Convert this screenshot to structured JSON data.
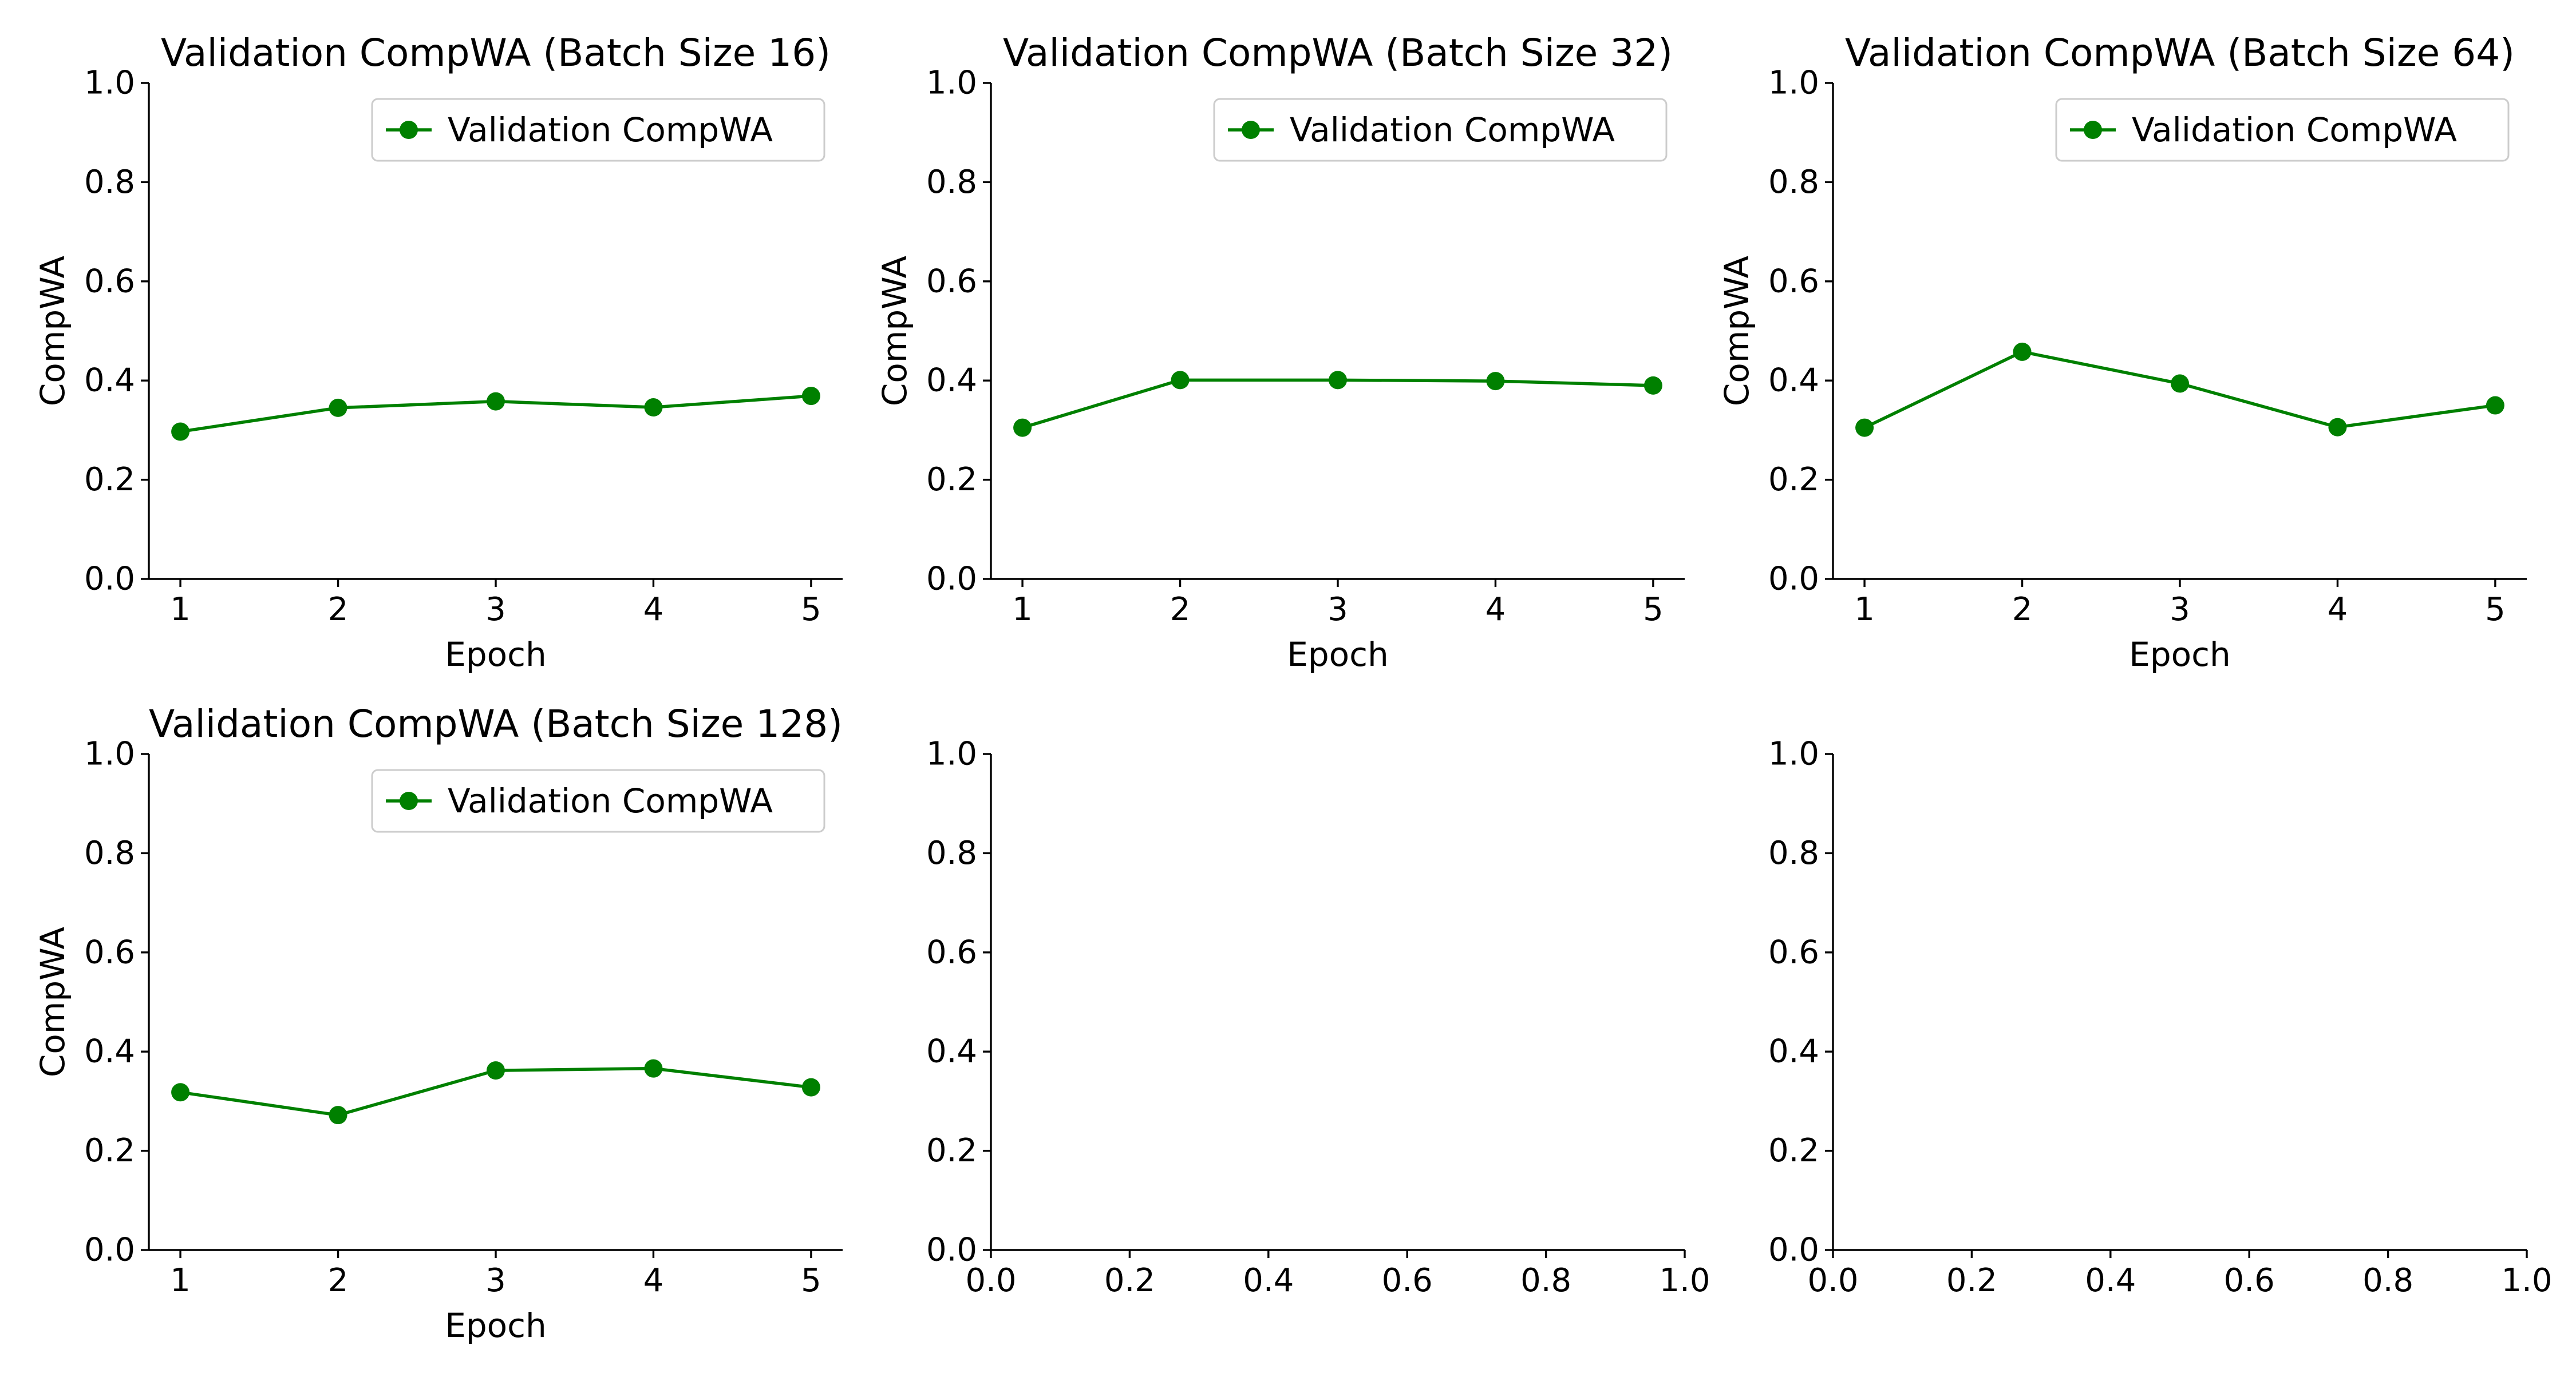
{
  "chart_data": [
    {
      "type": "line",
      "title": "Validation CompWA (Batch Size 16)",
      "xlabel": "Epoch",
      "ylabel": "CompWA",
      "x": [
        1,
        2,
        3,
        4,
        5
      ],
      "xticks": [
        "1",
        "2",
        "3",
        "4",
        "5"
      ],
      "yticks": [
        "0.0",
        "0.2",
        "0.4",
        "0.6",
        "0.8",
        "1.0"
      ],
      "ylim": [
        0,
        1
      ],
      "legend": "upper right",
      "series": [
        {
          "name": "Validation CompWA",
          "color": "#008000",
          "values": [
            0.297,
            0.345,
            0.358,
            0.346,
            0.369
          ]
        }
      ]
    },
    {
      "type": "line",
      "title": "Validation CompWA (Batch Size 32)",
      "xlabel": "Epoch",
      "ylabel": "CompWA",
      "x": [
        1,
        2,
        3,
        4,
        5
      ],
      "xticks": [
        "1",
        "2",
        "3",
        "4",
        "5"
      ],
      "yticks": [
        "0.0",
        "0.2",
        "0.4",
        "0.6",
        "0.8",
        "1.0"
      ],
      "ylim": [
        0,
        1
      ],
      "legend": "upper right",
      "series": [
        {
          "name": "Validation CompWA",
          "color": "#008000",
          "values": [
            0.305,
            0.401,
            0.401,
            0.399,
            0.39
          ]
        }
      ]
    },
    {
      "type": "line",
      "title": "Validation CompWA (Batch Size 64)",
      "xlabel": "Epoch",
      "ylabel": "CompWA",
      "x": [
        1,
        2,
        3,
        4,
        5
      ],
      "xticks": [
        "1",
        "2",
        "3",
        "4",
        "5"
      ],
      "yticks": [
        "0.0",
        "0.2",
        "0.4",
        "0.6",
        "0.8",
        "1.0"
      ],
      "ylim": [
        0,
        1
      ],
      "legend": "upper right",
      "series": [
        {
          "name": "Validation CompWA",
          "color": "#008000",
          "values": [
            0.305,
            0.458,
            0.394,
            0.306,
            0.35
          ]
        }
      ]
    },
    {
      "type": "line",
      "title": "Validation CompWA (Batch Size 128)",
      "xlabel": "Epoch",
      "ylabel": "CompWA",
      "x": [
        1,
        2,
        3,
        4,
        5
      ],
      "xticks": [
        "1",
        "2",
        "3",
        "4",
        "5"
      ],
      "yticks": [
        "0.0",
        "0.2",
        "0.4",
        "0.6",
        "0.8",
        "1.0"
      ],
      "ylim": [
        0,
        1
      ],
      "legend": "upper right",
      "series": [
        {
          "name": "Validation CompWA",
          "color": "#008000",
          "values": [
            0.318,
            0.272,
            0.362,
            0.366,
            0.328
          ]
        }
      ]
    },
    {
      "type": "line",
      "title": "",
      "xlabel": "",
      "ylabel": "",
      "x": [],
      "xlim": [
        0,
        1
      ],
      "ylim": [
        0,
        1
      ],
      "xticks": [
        "0.0",
        "0.2",
        "0.4",
        "0.6",
        "0.8",
        "1.0"
      ],
      "yticks": [
        "0.0",
        "0.2",
        "0.4",
        "0.6",
        "0.8",
        "1.0"
      ],
      "series": []
    },
    {
      "type": "line",
      "title": "",
      "xlabel": "",
      "ylabel": "",
      "x": [],
      "xlim": [
        0,
        1
      ],
      "ylim": [
        0,
        1
      ],
      "xticks": [
        "0.0",
        "0.2",
        "0.4",
        "0.6",
        "0.8",
        "1.0"
      ],
      "yticks": [
        "0.0",
        "0.2",
        "0.4",
        "0.6",
        "0.8",
        "1.0"
      ],
      "series": []
    }
  ]
}
